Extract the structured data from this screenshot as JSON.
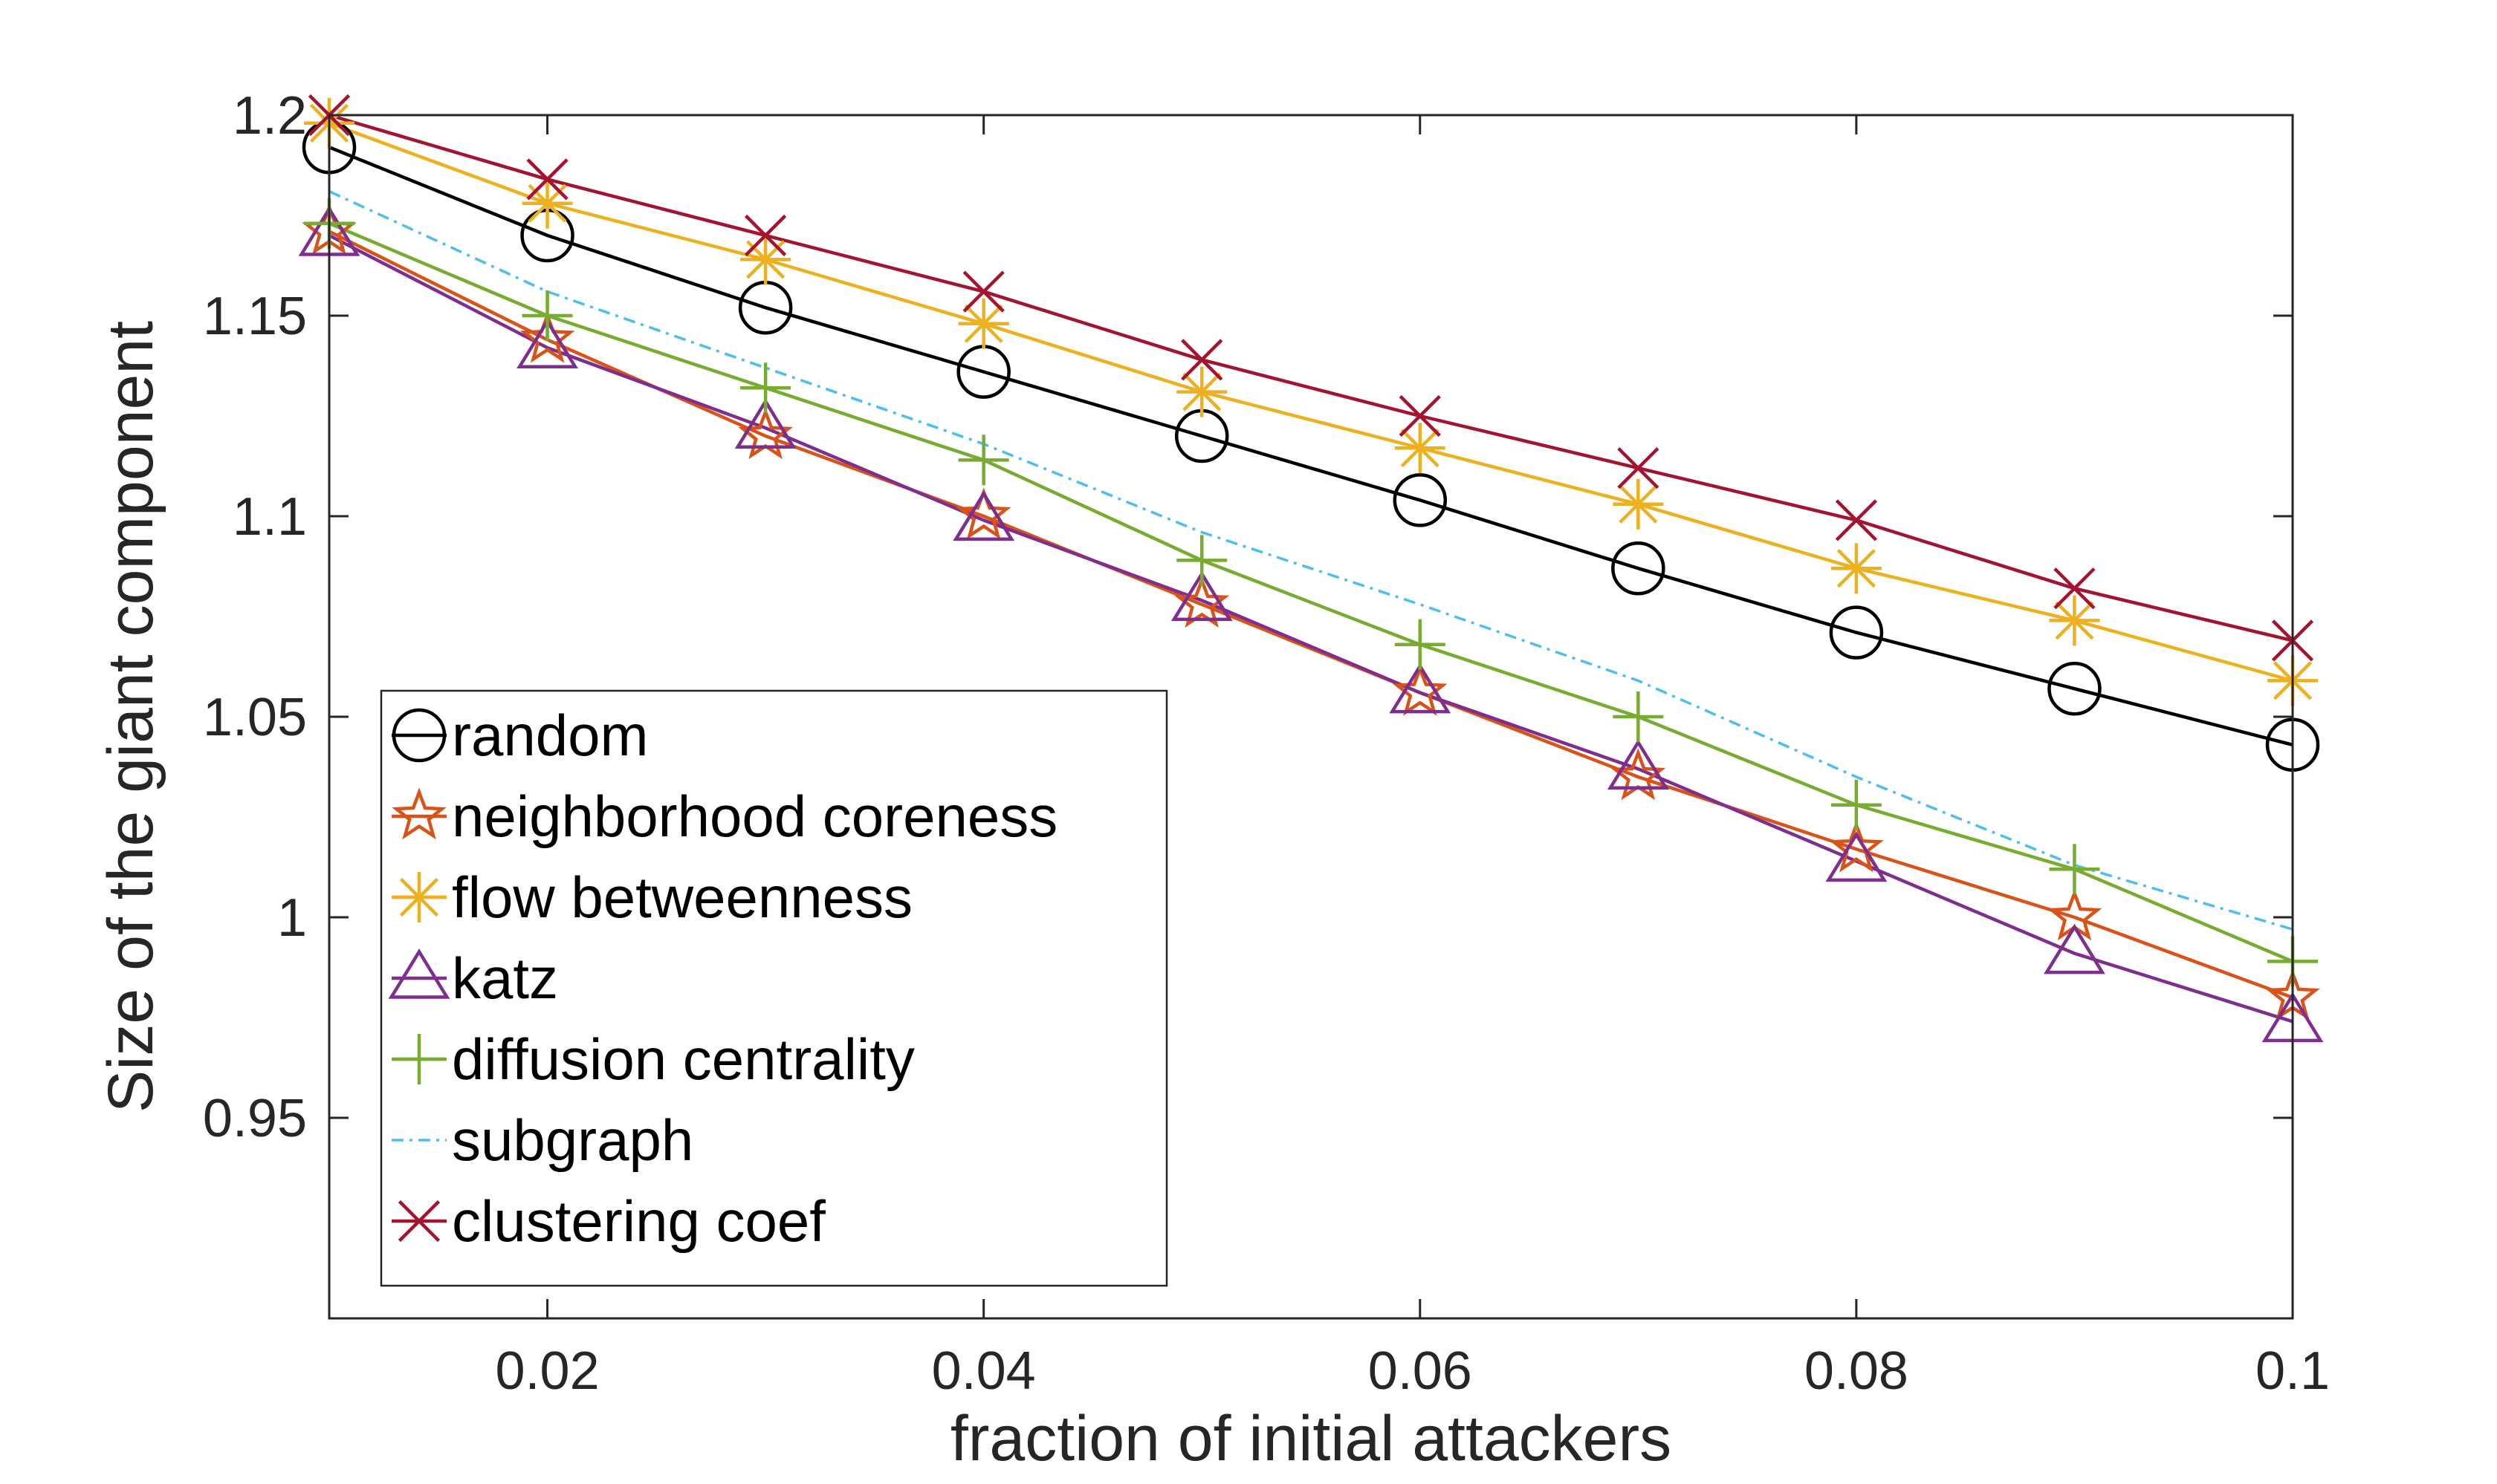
{
  "chart_data": {
    "type": "line",
    "title": "",
    "xlabel": "fraction of initial attackers",
    "ylabel": "Size of the giant component",
    "xlim": [
      0.01,
      0.1
    ],
    "ylim": [
      0.9,
      1.2
    ],
    "xticks": [
      0.02,
      0.04,
      0.06,
      0.08,
      0.1
    ],
    "xtick_labels": [
      "0.02",
      "0.04",
      "0.06",
      "0.08",
      "0.1"
    ],
    "yticks": [
      0.95,
      1.0,
      1.05,
      1.1,
      1.15,
      1.2
    ],
    "ytick_labels": [
      "0.95",
      "1",
      "1.05",
      "1.1",
      "1.15",
      "1.2"
    ],
    "grid": false,
    "legend_position": "bottom-left",
    "x": [
      0.01,
      0.02,
      0.03,
      0.04,
      0.05,
      0.06,
      0.07,
      0.08,
      0.09,
      0.1
    ],
    "series": [
      {
        "name": "random",
        "marker": "circle",
        "color": "#000000",
        "dash": "solid",
        "values": [
          1.192,
          1.17,
          1.152,
          1.136,
          1.12,
          1.104,
          1.087,
          1.071,
          1.057,
          1.043
        ]
      },
      {
        "name": "neighborhood coreness",
        "marker": "star",
        "color": "#D95319",
        "dash": "solid",
        "values": [
          1.171,
          1.144,
          1.12,
          1.1,
          1.078,
          1.056,
          1.035,
          1.017,
          1.0,
          0.98
        ]
      },
      {
        "name": "flow betweenness",
        "marker": "asterisk",
        "color": "#EDB120",
        "dash": "solid",
        "values": [
          1.198,
          1.178,
          1.164,
          1.148,
          1.131,
          1.117,
          1.103,
          1.087,
          1.074,
          1.059
        ]
      },
      {
        "name": "katz",
        "marker": "triangle",
        "color": "#7E2F8E",
        "dash": "solid",
        "values": [
          1.17,
          1.142,
          1.122,
          1.099,
          1.079,
          1.056,
          1.037,
          1.014,
          0.991,
          0.974
        ]
      },
      {
        "name": "diffusion centrality",
        "marker": "plus",
        "color": "#77AC30",
        "dash": "solid",
        "values": [
          1.173,
          1.15,
          1.132,
          1.114,
          1.089,
          1.068,
          1.05,
          1.028,
          1.012,
          0.989
        ]
      },
      {
        "name": "subgraph",
        "marker": "none",
        "color": "#4DBEEE",
        "dash": "dashdot",
        "values": [
          1.181,
          1.156,
          1.137,
          1.118,
          1.096,
          1.078,
          1.059,
          1.035,
          1.013,
          0.997
        ]
      },
      {
        "name": "clustering coef",
        "marker": "x",
        "color": "#A2142F",
        "dash": "solid",
        "values": [
          1.2,
          1.184,
          1.17,
          1.156,
          1.139,
          1.125,
          1.112,
          1.099,
          1.082,
          1.069
        ]
      }
    ]
  }
}
